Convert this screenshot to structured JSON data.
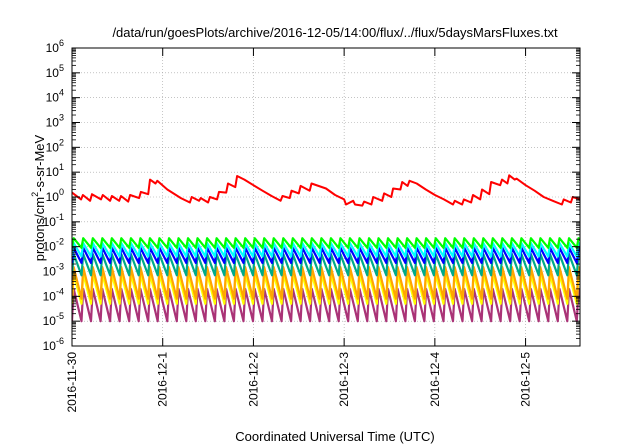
{
  "chart_data": {
    "type": "line",
    "title": "/data/run/goesPlots/archive/2016-12-05/14:00/flux/../flux/5daysMarsFluxes.txt",
    "xlabel": "Coordinated Universal Time (UTC)",
    "ylabel_base": "protons/cm",
    "ylabel_sup": "2",
    "ylabel_rest": "-s-sr-MeV",
    "yscale": "log",
    "ylim_exp": [
      -6,
      6
    ],
    "xlim_days": [
      0,
      5.6
    ],
    "x_ticks": [
      {
        "label": "2016-11-30",
        "day": 0
      },
      {
        "label": "2016-12-1",
        "day": 1
      },
      {
        "label": "2016-12-2",
        "day": 2
      },
      {
        "label": "2016-12-3",
        "day": 3
      },
      {
        "label": "2016-12-4",
        "day": 4
      },
      {
        "label": "2016-12-5",
        "day": 5
      }
    ],
    "y_ticks": [
      {
        "base": "10",
        "exp": "-6"
      },
      {
        "base": "10",
        "exp": "-5"
      },
      {
        "base": "10",
        "exp": "-4"
      },
      {
        "base": "10",
        "exp": "-3"
      },
      {
        "base": "10",
        "exp": "-2"
      },
      {
        "base": "10",
        "exp": "-1"
      },
      {
        "base": "10",
        "exp": "0"
      },
      {
        "base": "10",
        "exp": "1"
      },
      {
        "base": "10",
        "exp": "2"
      },
      {
        "base": "10",
        "exp": "3"
      },
      {
        "base": "10",
        "exp": "4"
      },
      {
        "base": "10",
        "exp": "5"
      },
      {
        "base": "10",
        "exp": "6"
      }
    ],
    "grid": true,
    "series": [
      {
        "color": "#ff0000",
        "kind": "main",
        "points": [
          [
            0.0,
            1.5
          ],
          [
            0.1,
            0.8
          ],
          [
            0.12,
            1.2
          ],
          [
            0.2,
            0.7
          ],
          [
            0.22,
            1.3
          ],
          [
            0.32,
            0.8
          ],
          [
            0.34,
            1.2
          ],
          [
            0.42,
            0.7
          ],
          [
            0.44,
            1.1
          ],
          [
            0.52,
            0.7
          ],
          [
            0.54,
            1.1
          ],
          [
            0.62,
            0.65
          ],
          [
            0.64,
            1.2
          ],
          [
            0.74,
            0.9
          ],
          [
            0.76,
            1.6
          ],
          [
            0.84,
            1.3
          ],
          [
            0.86,
            5.0
          ],
          [
            0.92,
            3.5
          ],
          [
            0.94,
            4.5
          ],
          [
            1.05,
            2.0
          ],
          [
            1.2,
            0.9
          ],
          [
            1.3,
            0.6
          ],
          [
            1.32,
            1.0
          ],
          [
            1.4,
            0.7
          ],
          [
            1.42,
            0.9
          ],
          [
            1.5,
            0.6
          ],
          [
            1.52,
            1.0
          ],
          [
            1.6,
            0.8
          ],
          [
            1.62,
            1.6
          ],
          [
            1.7,
            1.5
          ],
          [
            1.72,
            3.5
          ],
          [
            1.8,
            2.5
          ],
          [
            1.82,
            7.0
          ],
          [
            1.9,
            5.0
          ],
          [
            2.0,
            3.0
          ],
          [
            2.1,
            1.8
          ],
          [
            2.2,
            1.1
          ],
          [
            2.3,
            0.7
          ],
          [
            2.32,
            1.1
          ],
          [
            2.4,
            0.9
          ],
          [
            2.42,
            1.8
          ],
          [
            2.5,
            1.4
          ],
          [
            2.52,
            2.8
          ],
          [
            2.62,
            1.8
          ],
          [
            2.64,
            3.5
          ],
          [
            2.8,
            2.2
          ],
          [
            2.9,
            1.2
          ],
          [
            3.0,
            0.8
          ],
          [
            3.02,
            0.5
          ],
          [
            3.1,
            0.7
          ],
          [
            3.12,
            0.5
          ],
          [
            3.2,
            0.45
          ],
          [
            3.22,
            0.65
          ],
          [
            3.3,
            0.5
          ],
          [
            3.32,
            1.0
          ],
          [
            3.42,
            0.7
          ],
          [
            3.44,
            1.4
          ],
          [
            3.52,
            1.0
          ],
          [
            3.54,
            2.2
          ],
          [
            3.62,
            2.0
          ],
          [
            3.64,
            4.0
          ],
          [
            3.7,
            2.8
          ],
          [
            3.72,
            4.5
          ],
          [
            3.8,
            3.5
          ],
          [
            3.9,
            2.0
          ],
          [
            4.0,
            1.2
          ],
          [
            4.1,
            0.8
          ],
          [
            4.2,
            0.5
          ],
          [
            4.22,
            0.7
          ],
          [
            4.3,
            0.5
          ],
          [
            4.32,
            0.8
          ],
          [
            4.4,
            0.6
          ],
          [
            4.42,
            1.2
          ],
          [
            4.5,
            0.8
          ],
          [
            4.52,
            2.0
          ],
          [
            4.6,
            1.3
          ],
          [
            4.62,
            4.0
          ],
          [
            4.72,
            3.0
          ],
          [
            4.74,
            5.0
          ],
          [
            4.8,
            3.5
          ],
          [
            4.82,
            7.5
          ],
          [
            4.88,
            5.0
          ],
          [
            4.9,
            5.5
          ],
          [
            5.0,
            3.0
          ],
          [
            5.1,
            1.8
          ],
          [
            5.2,
            1.0
          ],
          [
            5.3,
            0.7
          ],
          [
            5.4,
            0.5
          ],
          [
            5.42,
            0.8
          ],
          [
            5.5,
            0.6
          ],
          [
            5.52,
            1.0
          ],
          [
            5.6,
            0.8
          ],
          [
            5.62,
            2.8
          ],
          [
            5.65,
            2.5
          ]
        ]
      },
      {
        "color": "#00ff00",
        "kind": "saw",
        "hi": 0.022,
        "lo": 0.009
      },
      {
        "color": "#00ffff",
        "kind": "saw",
        "hi": 0.014,
        "lo": 0.004
      },
      {
        "color": "#0000ff",
        "kind": "saw",
        "hi": 0.009,
        "lo": 0.0022
      },
      {
        "color": "#00aa88",
        "kind": "saw",
        "hi": 0.005,
        "lo": 0.0007
      },
      {
        "color": "#ffa500",
        "kind": "saw",
        "hi": 0.0015,
        "lo": 8e-05
      },
      {
        "color": "#ffff00",
        "kind": "saw",
        "hi": 0.0008,
        "lo": 5e-05
      },
      {
        "color": "#aa3377",
        "kind": "saw",
        "hi": 0.0002,
        "lo": 1e-05
      }
    ],
    "saw_period_days": 0.105
  }
}
